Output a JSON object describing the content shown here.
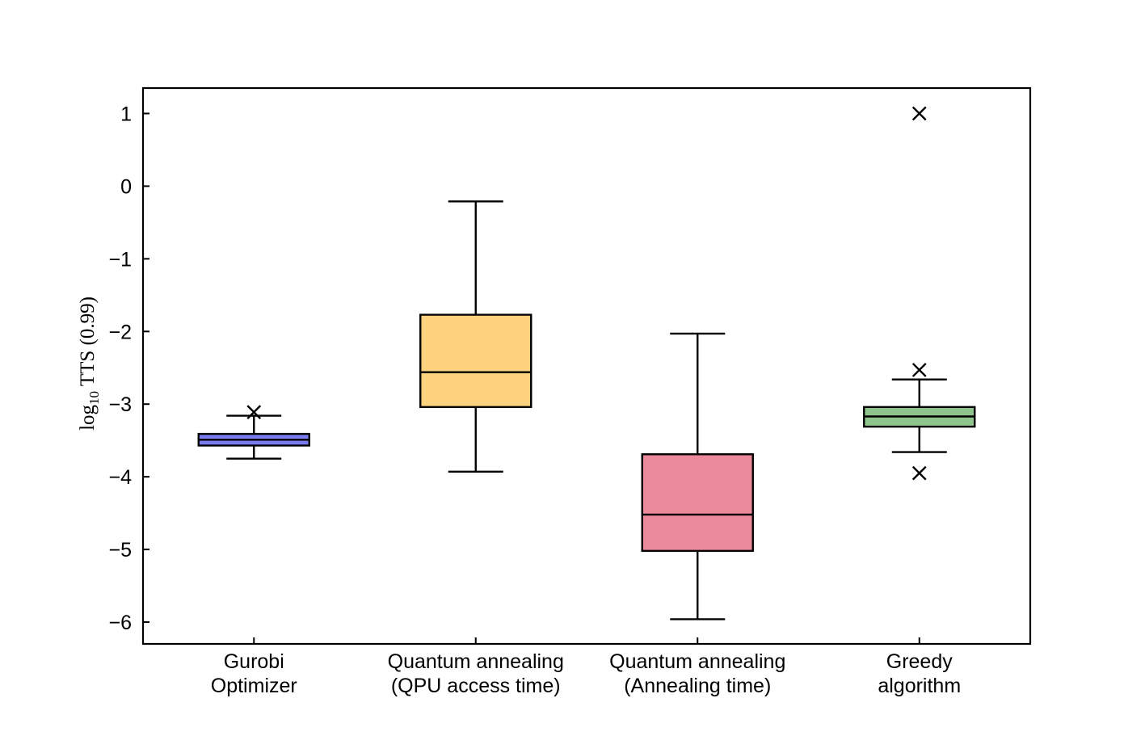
{
  "chart_data": {
    "type": "box",
    "ylabel_base": "log",
    "ylabel_subscript": "10",
    "ylabel_rest": " TTS (0.99)",
    "ylim": [
      -6.3,
      1.35
    ],
    "yticks": [
      1,
      0,
      -1,
      -2,
      -3,
      -4,
      -5,
      -6
    ],
    "ytick_labels": [
      "1",
      "0",
      "−1",
      "−2",
      "−3",
      "−4",
      "−5",
      "−6"
    ],
    "grid": false,
    "outlier_marker": "x",
    "boxes": [
      {
        "name": "gurobi",
        "label_lines": [
          "Gurobi",
          "Optimizer"
        ],
        "color": "#7b7bf0",
        "whisker_low": -3.75,
        "q1": -3.57,
        "median": -3.49,
        "q3": -3.41,
        "whisker_high": -3.16,
        "outliers": [
          -3.11
        ]
      },
      {
        "name": "qa-qpu-access",
        "label_lines": [
          "Quantum annealing",
          "(QPU access time)"
        ],
        "color": "#fdd27e",
        "whisker_low": -3.93,
        "q1": -3.04,
        "median": -2.56,
        "q3": -1.77,
        "whisker_high": -0.21,
        "outliers": []
      },
      {
        "name": "qa-annealing",
        "label_lines": [
          "Quantum annealing",
          "(Annealing time)"
        ],
        "color": "#eb8a9b",
        "whisker_low": -5.96,
        "q1": -5.02,
        "median": -4.52,
        "q3": -3.69,
        "whisker_high": -2.03,
        "outliers": []
      },
      {
        "name": "greedy",
        "label_lines": [
          "Greedy",
          "algorithm"
        ],
        "color": "#8fc58d",
        "whisker_low": -3.66,
        "q1": -3.31,
        "median": -3.17,
        "q3": -3.04,
        "whisker_high": -2.66,
        "outliers": [
          -2.53,
          -3.95,
          1.0
        ]
      }
    ]
  }
}
